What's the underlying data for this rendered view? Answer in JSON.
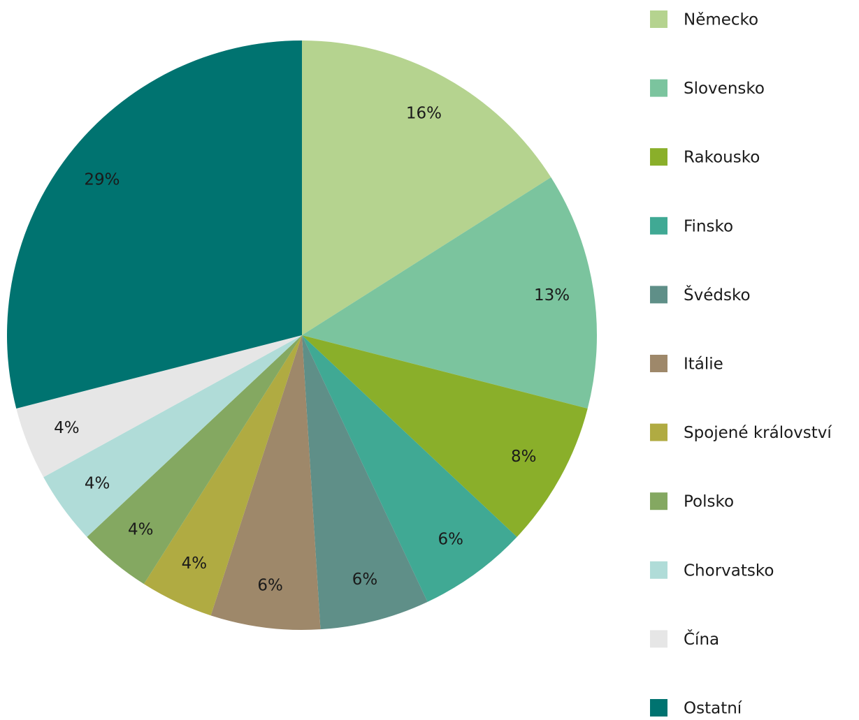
{
  "chart_data": {
    "type": "pie",
    "categories": [
      "Německo",
      "Slovensko",
      "Rakousko",
      "Finsko",
      "Švédsko",
      "Itálie",
      "Spojené království",
      "Polsko",
      "Chorvatsko",
      "Čína",
      "Ostatní"
    ],
    "values": [
      16,
      13,
      8,
      6,
      6,
      6,
      4,
      4,
      4,
      4,
      29
    ],
    "value_labels": [
      "16%",
      "13%",
      "8%",
      "6%",
      "6%",
      "6%",
      "4%",
      "4%",
      "4%",
      "4%",
      "29%"
    ],
    "colors": [
      "#b5d38f",
      "#7bc49e",
      "#8aaf2a",
      "#40a994",
      "#5f8f88",
      "#9e886a",
      "#b0ab42",
      "#84a861",
      "#b0dcd8",
      "#e6e6e6",
      "#007370"
    ],
    "legend": "right"
  }
}
